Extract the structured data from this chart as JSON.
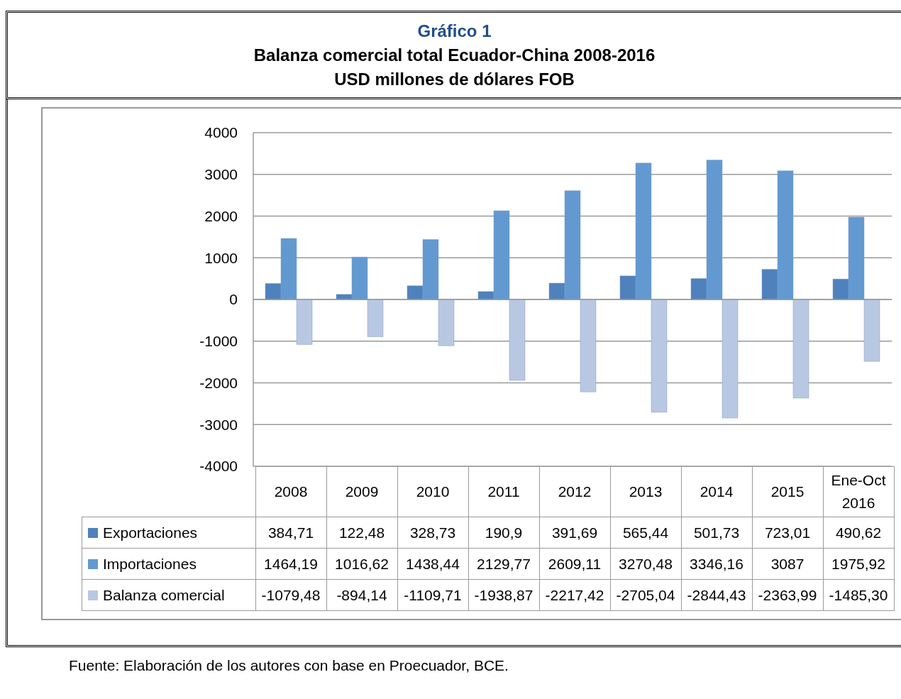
{
  "chart_data": {
    "type": "bar",
    "title": "Gráfico 1",
    "subtitle": "Balanza comercial total Ecuador-China 2008-2016\nUSD millones de dólares FOB",
    "categories": [
      "2008",
      "2009",
      "2010",
      "2011",
      "2012",
      "2013",
      "2014",
      "2015",
      "Ene-Oct 2016"
    ],
    "series": [
      {
        "name": "Exportaciones",
        "color": "#4f81bd",
        "values": [
          384.71,
          122.48,
          328.73,
          190.9,
          391.69,
          565.44,
          501.73,
          723.01,
          490.62
        ],
        "value_labels": [
          "384,71",
          "122,48",
          "328,73",
          "190,9",
          "391,69",
          "565,44",
          "501,73",
          "723,01",
          "490,62"
        ]
      },
      {
        "name": "Importaciones",
        "color": "#6299d0",
        "values": [
          1464.19,
          1016.62,
          1438.44,
          2129.77,
          2609.11,
          3270.48,
          3346.16,
          3087,
          1975.92
        ],
        "value_labels": [
          "1464,19",
          "1016,62",
          "1438,44",
          "2129,77",
          "2609,11",
          "3270,48",
          "3346,16",
          "3087",
          "1975,92"
        ]
      },
      {
        "name": "Balanza comercial",
        "color": "#b9c8e2",
        "values": [
          -1079.48,
          -894.14,
          -1109.71,
          -1938.87,
          -2217.42,
          -2705.04,
          -2844.43,
          -2363.99,
          -1485.3
        ],
        "value_labels": [
          "-1079,48",
          "-894,14",
          "-1109,71",
          "-1938,87",
          "-2217,42",
          "-2705,04",
          "-2844,43",
          "-2363,99",
          "-1485,30"
        ]
      }
    ],
    "ylim": [
      -4000,
      4000
    ],
    "yticks": [
      -4000,
      -3000,
      -2000,
      -1000,
      0,
      1000,
      2000,
      3000,
      4000
    ],
    "grid": "y",
    "legend": "bottom",
    "annotations": [
      "Fuente: Elaboración de los autores con base en Proecuador, BCE."
    ]
  }
}
